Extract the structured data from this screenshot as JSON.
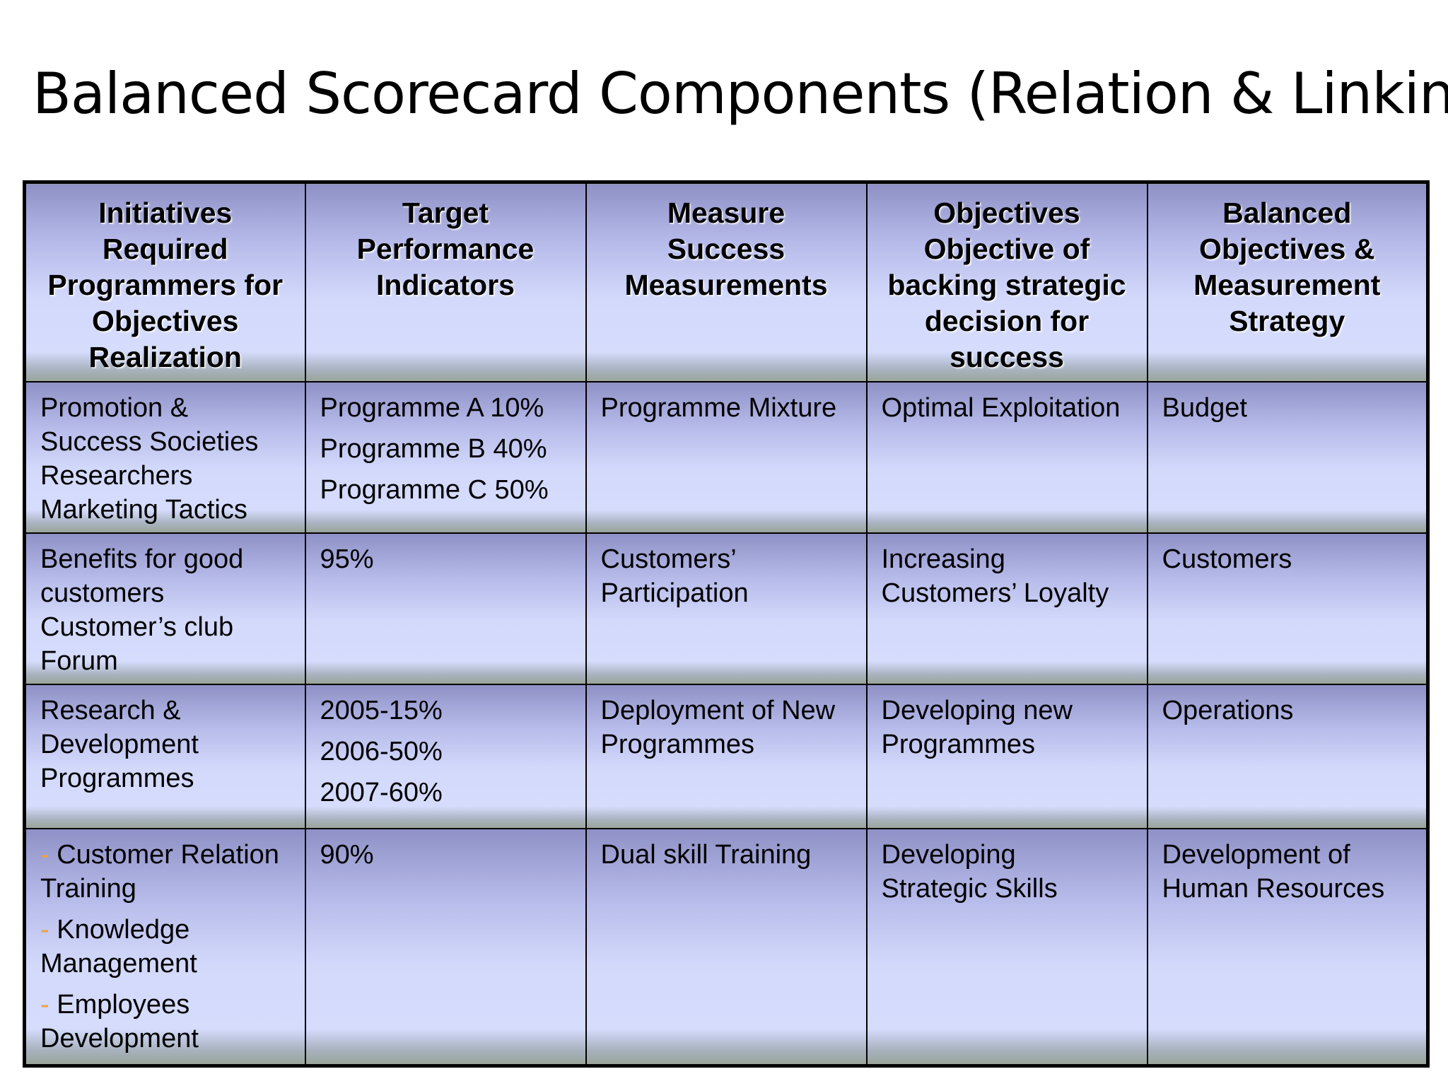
{
  "slide": {
    "title": "Balanced Scorecard Components (Relation & Linking)"
  },
  "table": {
    "headers": [
      [
        "Initiatives",
        "Required",
        "Programmers for",
        "Objectives",
        "Realization"
      ],
      [
        "Target",
        "Performance",
        "Indicators"
      ],
      [
        "Measure",
        "Success",
        "Measurements"
      ],
      [
        "Objectives",
        "Objective of",
        "backing strategic",
        "decision for",
        "success"
      ],
      [
        "Balanced",
        "Objectives &",
        "Measurement",
        "Strategy"
      ]
    ],
    "rows": [
      {
        "initiatives": [
          "Promotion &",
          "Success Societies",
          "Researchers",
          "Marketing Tactics"
        ],
        "targets": [
          "Programme A 10%",
          "Programme B 40%",
          "Programme C 50%"
        ],
        "measure": [
          "Programme Mixture"
        ],
        "objective": [
          "Optimal Exploitation"
        ],
        "perspective": [
          "Budget"
        ]
      },
      {
        "initiatives": [
          "Benefits for good",
          "customers",
          "Customer’s club",
          "Forum"
        ],
        "targets": [
          "95%"
        ],
        "measure": [
          "Customers’",
          "Participation"
        ],
        "objective": [
          "Increasing",
          "Customers’ Loyalty"
        ],
        "perspective": [
          "Customers"
        ]
      },
      {
        "initiatives": [
          "Research &",
          "Development",
          "Programmes"
        ],
        "targets": [
          "2005-15%",
          "2006-50%",
          "2007-60%"
        ],
        "measure": [
          "Deployment of New",
          "Programmes"
        ],
        "objective": [
          "Developing new",
          "Programmes"
        ],
        "perspective": [
          "Operations"
        ]
      },
      {
        "initiatives_bullets": [
          {
            "marker": "-",
            "lines": [
              "Customer Relation",
              "Training"
            ]
          },
          {
            "marker": "-",
            "lines": [
              "Knowledge",
              "Management"
            ]
          },
          {
            "marker": "-",
            "lines": [
              "Employees",
              "Development"
            ]
          }
        ],
        "targets": [
          "90%"
        ],
        "measure": [
          "Dual skill Training"
        ],
        "objective": [
          "Developing",
          "Strategic Skills"
        ],
        "perspective": [
          "Development of",
          "Human Resources"
        ]
      }
    ]
  },
  "colors": {
    "bullet_dash": "#f0a13d",
    "cell_gradient_top": "#8f91c6",
    "cell_gradient_mid": "#d3d9fb",
    "cell_gradient_bottom": "#9aa59a"
  }
}
